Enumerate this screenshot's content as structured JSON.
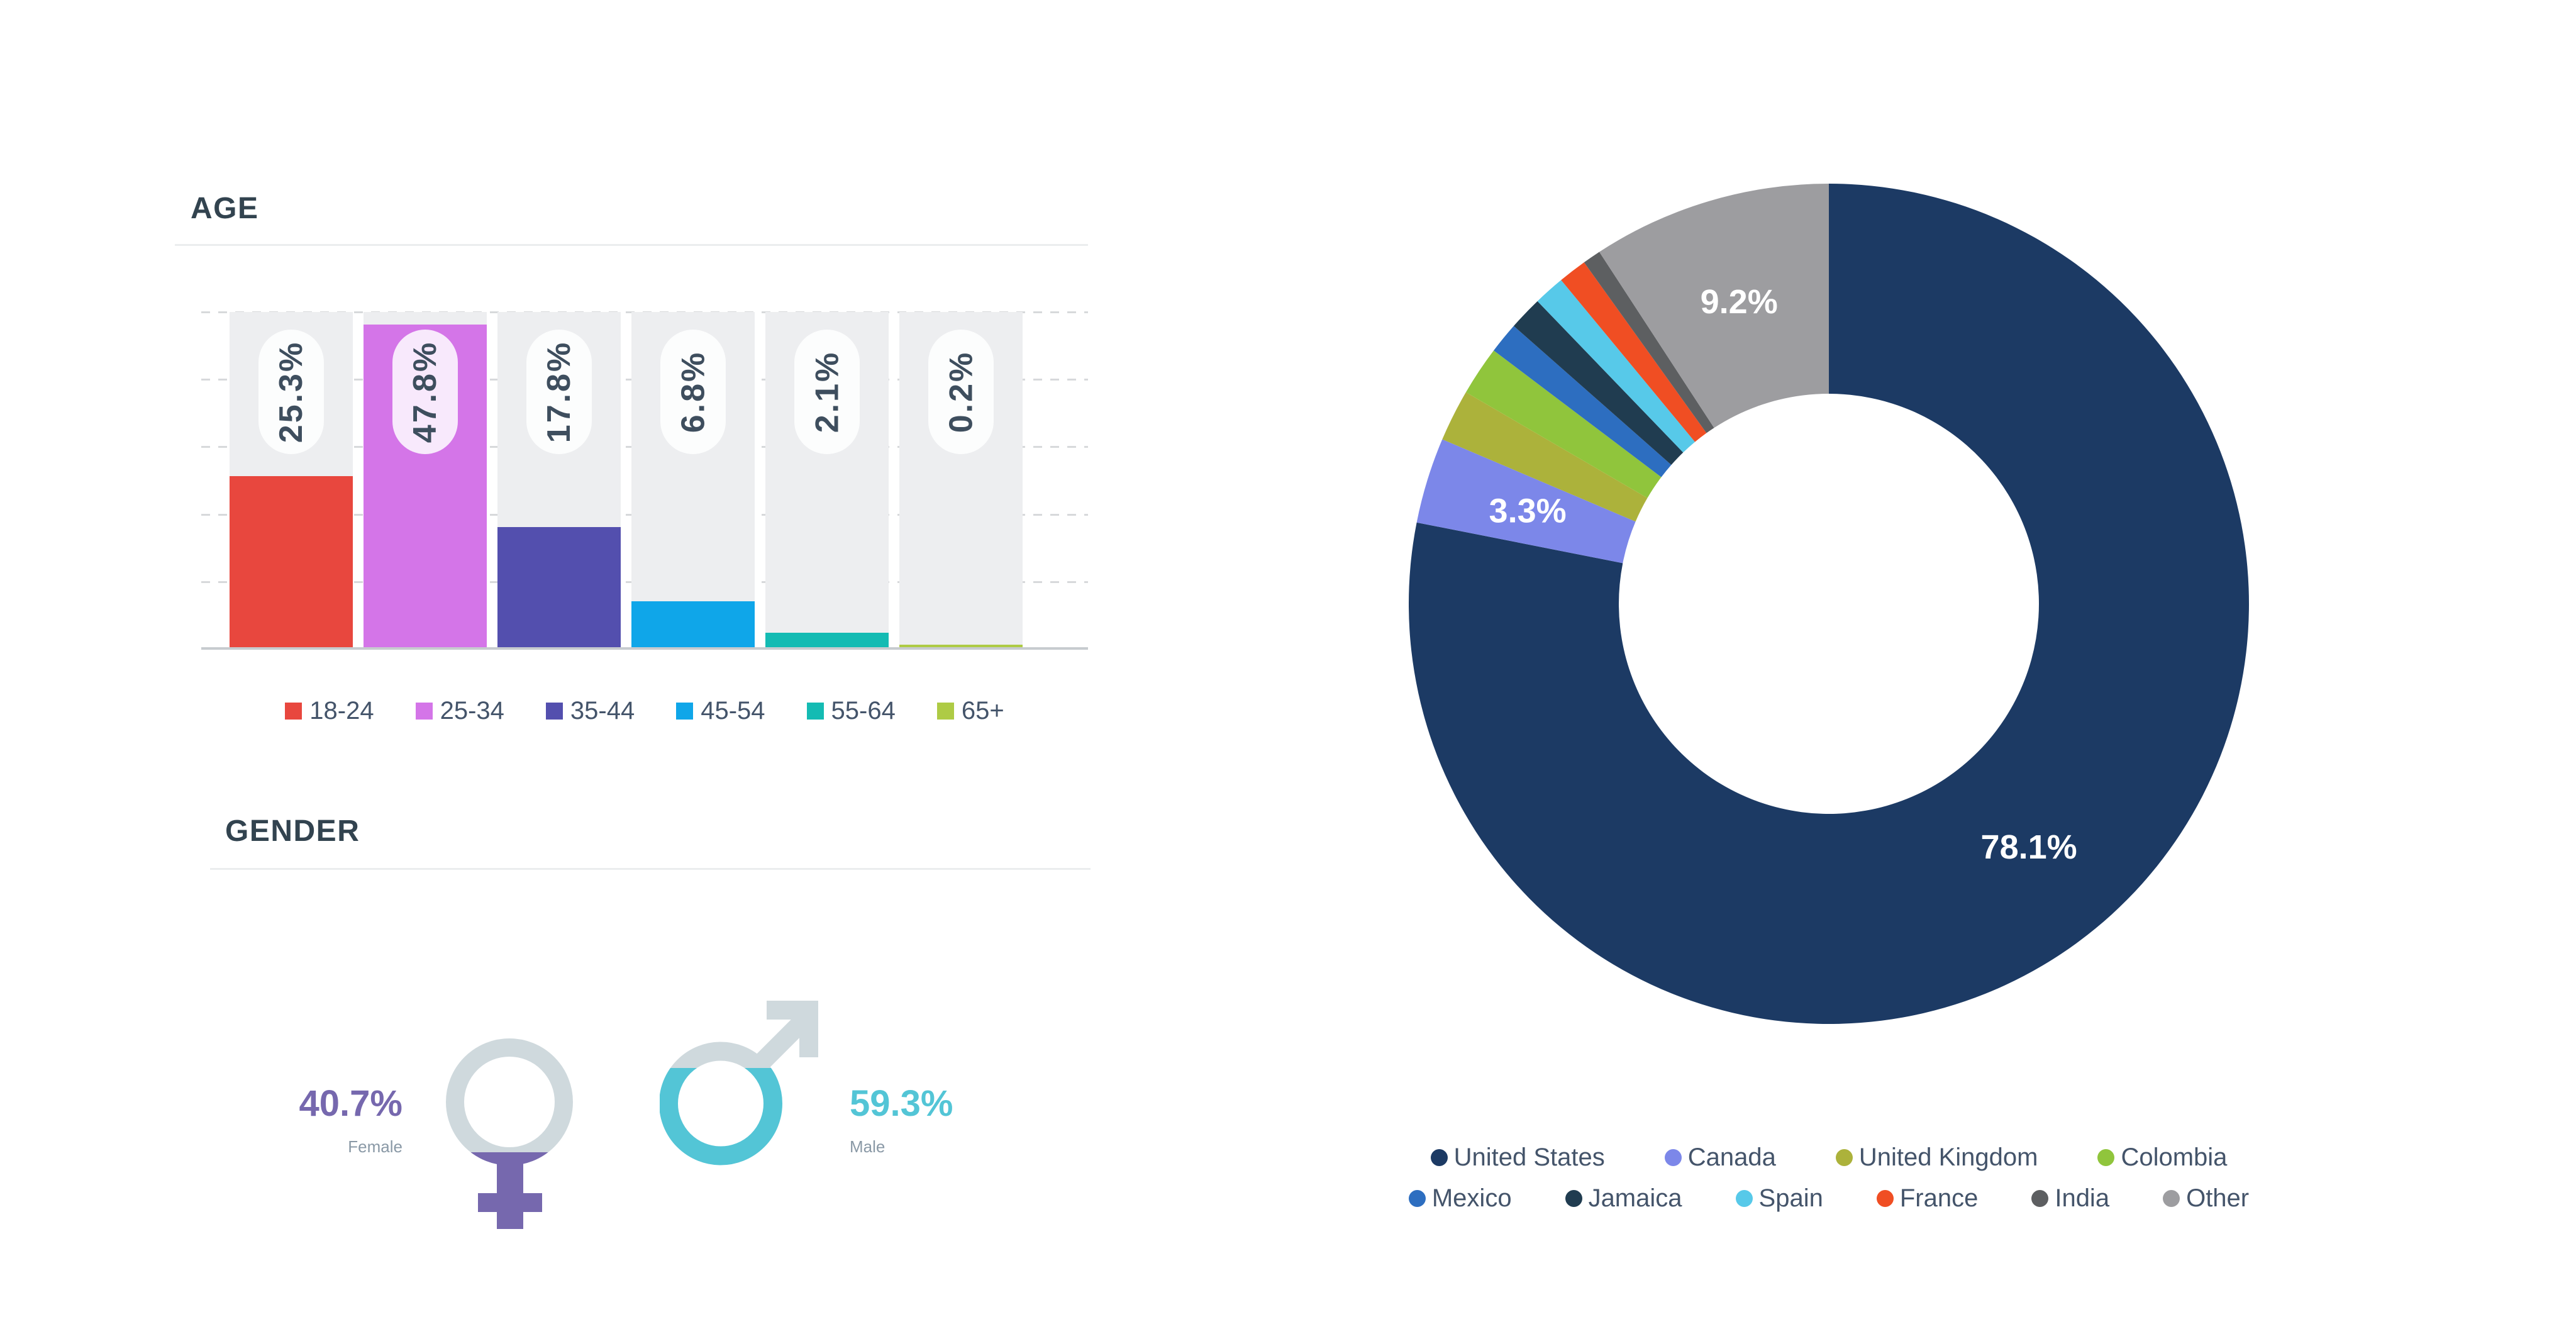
{
  "age": {
    "title": "AGE"
  },
  "gender": {
    "title": "GENDER",
    "female": {
      "value": "40.7%",
      "label": "Female"
    },
    "male": {
      "value": "59.3%",
      "label": "Male"
    }
  },
  "colors": {
    "heading_text": "#32434F",
    "axis_text": "#44546A",
    "bar_label_text": "#3E4E5E",
    "sublabel_gray": "#8A99A6",
    "divider": "#EBEDEE",
    "column_bg": "#EDEEF0",
    "gridline": "#D7D9DB",
    "baseline": "#C7CBCF",
    "female_purple": "#7668AE",
    "male_teal": "#53C5D6",
    "symbol_gray": "#CFD9DD",
    "slice_label": "#FFFFFF"
  },
  "chart_data": [
    {
      "type": "bar",
      "title": "AGE",
      "categories": [
        "18-24",
        "25-34",
        "35-44",
        "45-54",
        "55-64",
        "65+"
      ],
      "values": [
        25.3,
        47.8,
        17.8,
        6.8,
        2.1,
        0.2
      ],
      "value_labels": [
        "25.3%",
        "47.8%",
        "17.8%",
        "6.8%",
        "2.1%",
        "0.2%"
      ],
      "colors": [
        "#E8473E",
        "#D475E8",
        "#534FAE",
        "#0FA6E9",
        "#14BBB3",
        "#AECB45"
      ],
      "xlabel": "",
      "ylabel": "",
      "ylim": [
        0,
        50
      ],
      "gridlines_pct": [
        10,
        20,
        30,
        40,
        50
      ],
      "grid": "dashed-horizontal",
      "legend_position": "bottom"
    },
    {
      "type": "donut",
      "labels": [
        "United States",
        "Canada",
        "United Kingdom",
        "Colombia",
        "Mexico",
        "Jamaica",
        "Spain",
        "France",
        "India",
        "Other"
      ],
      "values": [
        78.1,
        3.3,
        2.0,
        1.9,
        1.2,
        1.3,
        1.2,
        1.1,
        0.7,
        9.2
      ],
      "value_labels": [
        "78.1%",
        "3.3%",
        "",
        "",
        "",
        "",
        "",
        "",
        "",
        "9.2%"
      ],
      "colors": [
        "#1C3A64",
        "#7C87E9",
        "#ACB23B",
        "#90C53C",
        "#2D6EC0",
        "#203C50",
        "#57C9E9",
        "#F04E23",
        "#5D5F61",
        "#9D9DA0"
      ],
      "start_angle_deg": 0,
      "direction": "clockwise",
      "inner_radius_ratio": 0.5,
      "legend_rows": [
        [
          0,
          1,
          2,
          3
        ],
        [
          4,
          5,
          6,
          7,
          8,
          9
        ]
      ],
      "legend_position": "bottom"
    }
  ]
}
